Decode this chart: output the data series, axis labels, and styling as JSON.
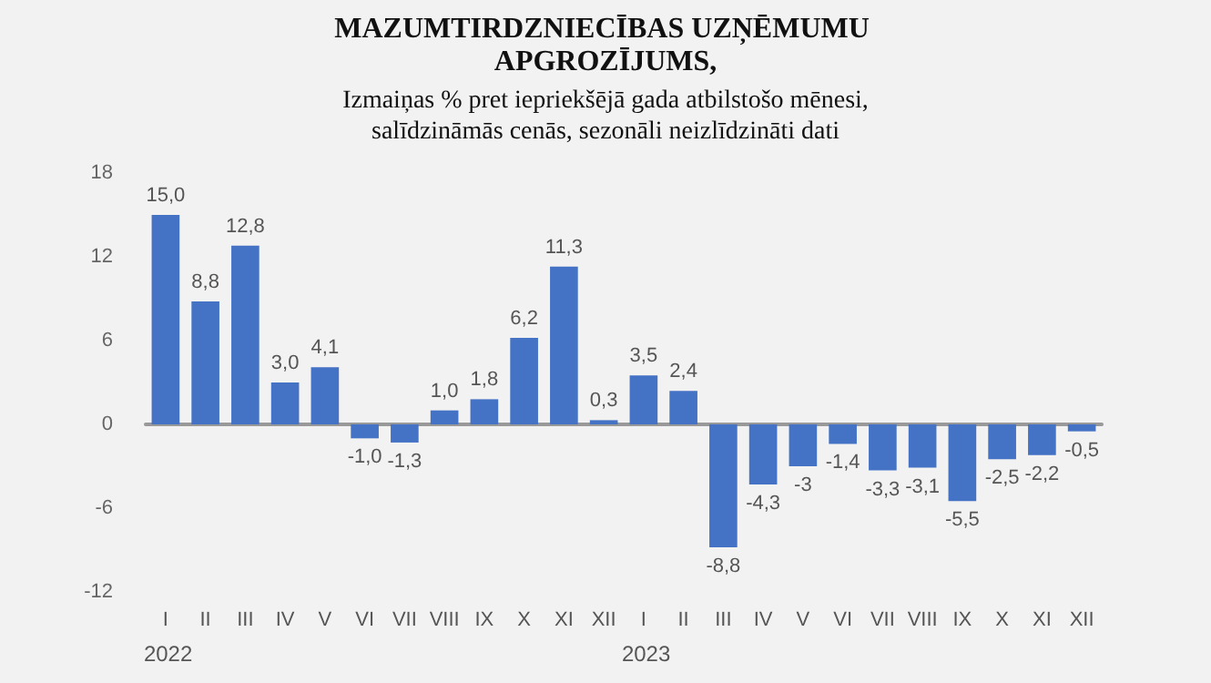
{
  "chart_data": {
    "type": "bar",
    "title": "MAZUMTIRDZNIECĪBAS UZŅĒMUMU APGROZĪJUMS,",
    "subtitle": "Izmaiņas % pret iepriekšējā gada atbilstošo mēnesi,\nsalīdzināmās cenās, sezonāli neizlīdzināti dati",
    "categories": [
      "I",
      "II",
      "III",
      "IV",
      "V",
      "VI",
      "VII",
      "VIII",
      "IX",
      "X",
      "XI",
      "XII",
      "I",
      "II",
      "III",
      "IV",
      "V",
      "VI",
      "VII",
      "VIII",
      "IX",
      "X",
      "XI",
      "XII"
    ],
    "values": [
      15.0,
      8.8,
      12.8,
      3.0,
      4.1,
      -1.0,
      -1.3,
      1.0,
      1.8,
      6.2,
      11.3,
      0.3,
      3.5,
      2.4,
      -8.8,
      -4.3,
      -3,
      -1.4,
      -3.3,
      -3.1,
      -5.5,
      -2.5,
      -2.2,
      -0.5
    ],
    "value_labels": [
      "15,0",
      "8,8",
      "12,8",
      "3,0",
      "4,1",
      "-1,0",
      "-1,3",
      "1,0",
      "1,8",
      "6,2",
      "11,3",
      "0,3",
      "3,5",
      "2,4",
      "-8,8",
      "-4,3",
      "-3",
      "-1,4",
      "-3,3",
      "-3,1",
      "-5,5",
      "-2,5",
      "-2,2",
      "-0,5"
    ],
    "color": "#4472c4",
    "ylim": [
      -12,
      18
    ],
    "yticks": [
      -12,
      -6,
      0,
      6,
      12,
      18
    ],
    "annotations": [
      "2022",
      "2023"
    ]
  }
}
